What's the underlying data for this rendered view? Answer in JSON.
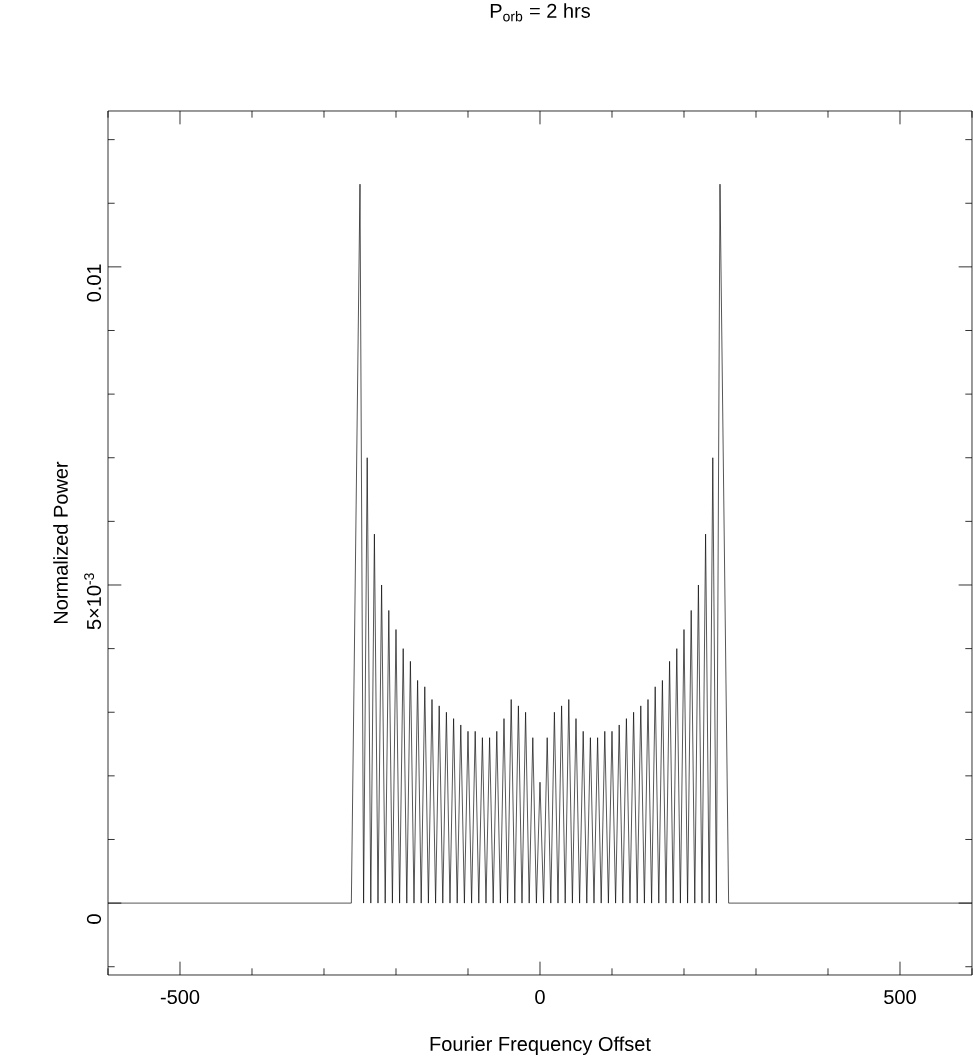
{
  "chart_data": {
    "type": "line",
    "title": "P$_{orb}$ = 2 hrs",
    "xlabel": "Fourier Frequency Offset",
    "ylabel": "Normalized Power",
    "xlim": [
      -600,
      600
    ],
    "ylim": [
      -0.00113,
      0.01245
    ],
    "xticks": [
      {
        "value": -600,
        "label": null
      },
      -500,
      {
        "value": -400,
        "label": null
      },
      {
        "value": -300,
        "label": null
      },
      {
        "value": -200,
        "label": null
      },
      {
        "value": -100,
        "label": null
      },
      0,
      {
        "value": 100,
        "label": null
      },
      {
        "value": 200,
        "label": null
      },
      {
        "value": 300,
        "label": null
      },
      {
        "value": 400,
        "label": null
      },
      500,
      {
        "value": 600,
        "label": null
      }
    ],
    "yticks": [
      {
        "value": -0.001,
        "label": null
      },
      0,
      {
        "value": 0.001,
        "label": null
      },
      {
        "value": 0.002,
        "label": null
      },
      {
        "value": 0.003,
        "label": null
      },
      {
        "value": 0.004,
        "label": null
      },
      {
        "value": 0.005,
        "label": "5×10$^{-3}$"
      },
      {
        "value": 0.006,
        "label": null
      },
      {
        "value": 0.007,
        "label": null
      },
      {
        "value": 0.008,
        "label": null
      },
      {
        "value": 0.009,
        "label": null
      },
      0.01,
      {
        "value": 0.011,
        "label": null
      },
      {
        "value": 0.012,
        "label": null
      }
    ],
    "x": [
      -600,
      -262,
      -250,
      -245,
      -240,
      -235,
      -230,
      -225,
      -220,
      -215,
      -210,
      -205,
      -200,
      -195,
      -190,
      -185,
      -180,
      -175,
      -170,
      -165,
      -160,
      -155,
      -150,
      -145,
      -140,
      -135,
      -130,
      -125,
      -120,
      -115,
      -110,
      -105,
      -100,
      -95,
      -90,
      -85,
      -80,
      -75,
      -70,
      -65,
      -60,
      -55,
      -50,
      -45,
      -40,
      -35,
      -30,
      -25,
      -20,
      -15,
      -10,
      -5,
      0,
      5,
      10,
      15,
      20,
      25,
      30,
      35,
      40,
      45,
      50,
      55,
      60,
      65,
      70,
      75,
      80,
      85,
      90,
      95,
      100,
      105,
      110,
      115,
      120,
      125,
      130,
      135,
      140,
      145,
      150,
      155,
      160,
      165,
      170,
      175,
      180,
      185,
      190,
      195,
      200,
      205,
      210,
      215,
      220,
      225,
      230,
      235,
      240,
      245,
      250,
      262,
      600
    ],
    "values": [
      0,
      0,
      0.0113,
      0,
      0.007,
      0,
      0.0058,
      0,
      0.005,
      0,
      0.0046,
      0,
      0.0043,
      0,
      0.004,
      0,
      0.0038,
      0,
      0.0035,
      0,
      0.0034,
      0,
      0.0032,
      0,
      0.0031,
      0,
      0.003,
      0,
      0.0029,
      0,
      0.0028,
      0,
      0.0027,
      0,
      0.0027,
      0,
      0.0026,
      0,
      0.0026,
      0,
      0.0027,
      0,
      0.0029,
      0,
      0.0032,
      0,
      0.0031,
      0,
      0.003,
      0,
      0.0026,
      0,
      0.0019,
      0,
      0.0026,
      0,
      0.003,
      0,
      0.0031,
      0,
      0.0032,
      0,
      0.0029,
      0,
      0.0027,
      0,
      0.0026,
      0,
      0.0026,
      0,
      0.0027,
      0,
      0.0027,
      0,
      0.0028,
      0,
      0.0029,
      0,
      0.003,
      0,
      0.0031,
      0,
      0.0032,
      0,
      0.0034,
      0,
      0.0035,
      0,
      0.0038,
      0,
      0.004,
      0,
      0.0043,
      0,
      0.0046,
      0,
      0.005,
      0,
      0.0058,
      0,
      0.007,
      0,
      0.0113,
      0,
      0
    ],
    "color": "#000000"
  }
}
